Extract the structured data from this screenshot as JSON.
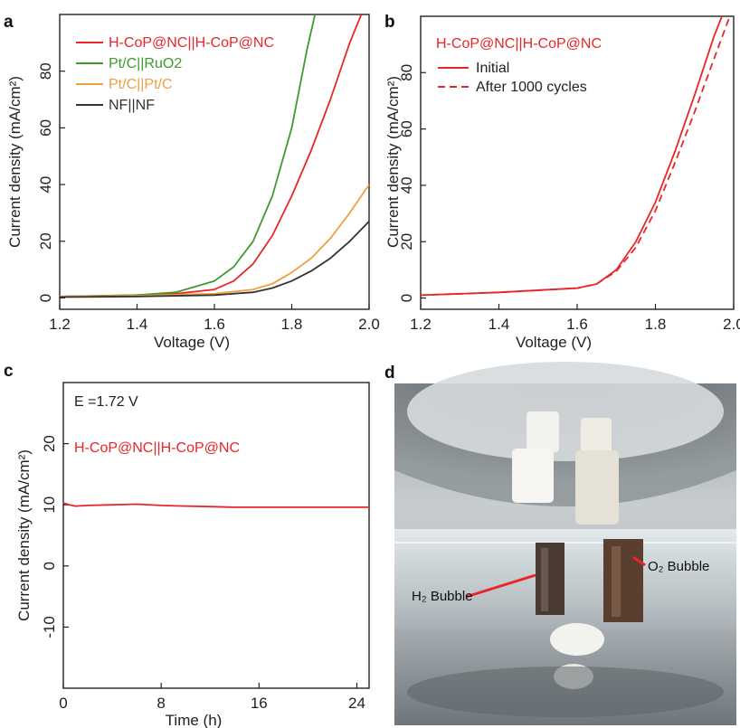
{
  "chart_data": [
    {
      "panel": "a",
      "type": "line",
      "xlabel": "Voltage (V)",
      "ylabel": "Current density (mA/cm²)",
      "xlim": [
        1.2,
        2.0
      ],
      "ylim": [
        -4,
        100
      ],
      "xticks": [
        "1.2",
        "1.4",
        "1.6",
        "1.8",
        "2.0"
      ],
      "yticks": [
        "0",
        "20",
        "40",
        "60",
        "80"
      ],
      "series": [
        {
          "name": "H-CoP@NC||H-CoP@NC",
          "color": "#e8262a",
          "x": [
            1.2,
            1.4,
            1.5,
            1.6,
            1.65,
            1.7,
            1.75,
            1.8,
            1.85,
            1.9,
            1.95,
            1.98
          ],
          "y": [
            0.5,
            1.0,
            1.5,
            3,
            6,
            12,
            22,
            36,
            52,
            70,
            90,
            100
          ]
        },
        {
          "name": "Pt/C||RuO2",
          "color": "#3f9a2e",
          "x": [
            1.2,
            1.4,
            1.5,
            1.6,
            1.65,
            1.7,
            1.75,
            1.8,
            1.84,
            1.86
          ],
          "y": [
            0.5,
            1.0,
            2,
            6,
            11,
            20,
            36,
            60,
            88,
            100
          ]
        },
        {
          "name": "Pt/C||Pt/C",
          "color": "#f0a040",
          "x": [
            1.2,
            1.4,
            1.6,
            1.7,
            1.75,
            1.8,
            1.85,
            1.9,
            1.95,
            2.0
          ],
          "y": [
            0.5,
            0.8,
            1.5,
            3,
            5,
            9,
            14,
            21,
            30,
            40
          ]
        },
        {
          "name": "NF||NF",
          "color": "#333333",
          "x": [
            1.2,
            1.4,
            1.6,
            1.7,
            1.75,
            1.8,
            1.85,
            1.9,
            1.95,
            2.0
          ],
          "y": [
            0.3,
            0.5,
            1.0,
            2,
            3.5,
            6,
            9.5,
            14,
            20,
            27
          ]
        }
      ]
    },
    {
      "panel": "b",
      "type": "line",
      "title": "H-CoP@NC||H-CoP@NC",
      "xlabel": "Voltage (V)",
      "ylabel": "Current density (mA/cm²)",
      "xlim": [
        1.2,
        2.0
      ],
      "ylim": [
        -4,
        100
      ],
      "xticks": [
        "1.2",
        "1.4",
        "1.6",
        "1.8",
        "2.0"
      ],
      "yticks": [
        "0",
        "20",
        "40",
        "60",
        "80"
      ],
      "series": [
        {
          "name": "Initial",
          "color": "#e8262a",
          "dash": false,
          "x": [
            1.2,
            1.4,
            1.6,
            1.65,
            1.7,
            1.75,
            1.8,
            1.85,
            1.9,
            1.95,
            1.97
          ],
          "y": [
            1.0,
            2.0,
            3.5,
            5,
            10,
            20,
            34,
            52,
            72,
            93,
            100
          ]
        },
        {
          "name": "After 1000 cycles",
          "color": "#e8262a",
          "dash": true,
          "x": [
            1.2,
            1.4,
            1.6,
            1.65,
            1.7,
            1.75,
            1.8,
            1.85,
            1.9,
            1.95,
            1.99
          ],
          "y": [
            1.0,
            2.0,
            3.5,
            5,
            9.5,
            18,
            31,
            48,
            66,
            85,
            100
          ]
        }
      ]
    },
    {
      "panel": "c",
      "type": "line",
      "annotation": "E =1.72 V",
      "title": "H-CoP@NC||H-CoP@NC",
      "xlabel": "Time (h)",
      "ylabel": "Current density (mA/cm²)",
      "xlim": [
        0,
        25
      ],
      "ylim": [
        -20,
        30
      ],
      "xticks": [
        "0",
        "8",
        "16",
        "24"
      ],
      "yticks": [
        "-10",
        "0",
        "10",
        "20"
      ],
      "series": [
        {
          "name": "H-CoP@NC||H-CoP@NC",
          "color": "#e8262a",
          "x": [
            0,
            0.5,
            1,
            2,
            4,
            6,
            8,
            10,
            12,
            14,
            16,
            18,
            20,
            22,
            24,
            25
          ],
          "y": [
            10.3,
            10.0,
            9.8,
            9.9,
            10.0,
            10.1,
            9.9,
            9.8,
            9.7,
            9.6,
            9.6,
            9.6,
            9.6,
            9.6,
            9.6,
            9.6
          ]
        }
      ]
    }
  ],
  "panels": {
    "a": "a",
    "b": "b",
    "c": "c",
    "d": "d"
  },
  "photo": {
    "h2_label": "H₂ Bubble",
    "o2_label": "O₂ Bubble",
    "arrow_color": "#e8262a"
  }
}
